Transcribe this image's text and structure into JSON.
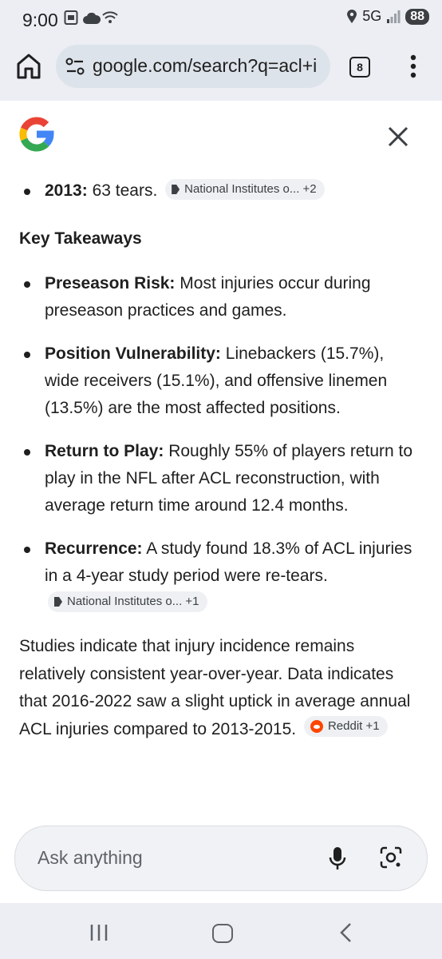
{
  "status_bar": {
    "time": "9:00",
    "network": "5G",
    "battery": "88"
  },
  "browser": {
    "url": "google.com/search?q=acl+i",
    "tab_count": "8"
  },
  "overview": {
    "first_item": {
      "label": "2013:",
      "text": "63 tears.",
      "source_chip": "National Institutes o... +2"
    },
    "key_takeaways_heading": "Key Takeaways",
    "takeaways": [
      {
        "label": "Preseason Risk:",
        "text": "Most injuries occur during preseason practices and games."
      },
      {
        "label": "Position Vulnerability:",
        "text": "Linebackers (15.7%), wide receivers (15.1%), and offensive linemen (13.5%) are the most affected positions."
      },
      {
        "label": "Return to Play:",
        "text": "Roughly 55% of players return to play in the NFL after ACL reconstruction, with average return time around 12.4 months."
      },
      {
        "label": "Recurrence:",
        "text": "A study found 18.3% of ACL injuries in a 4-year study period were re-tears.",
        "source_chip": "National Institutes o...  +1"
      }
    ],
    "summary": "Studies indicate that injury incidence remains relatively consistent year-over-year. Data indicates that 2016-2022 saw a slight uptick in average annual ACL injuries compared to 2013-2015.",
    "summary_chip": "Reddit +1"
  },
  "ask_bar": {
    "placeholder": "Ask anything"
  },
  "colors": {
    "background": "#ffffff",
    "chrome": "#eceef4",
    "urlbar": "#dde3ea",
    "chip": "#eef0f3",
    "reddit": "#ff4500"
  },
  "icons": [
    "home-icon",
    "site-settings-icon",
    "tabs-icon",
    "more-vert-icon",
    "google-logo",
    "close-icon",
    "mic-icon",
    "lens-icon",
    "recents-icon",
    "nav-home-icon",
    "back-icon"
  ]
}
